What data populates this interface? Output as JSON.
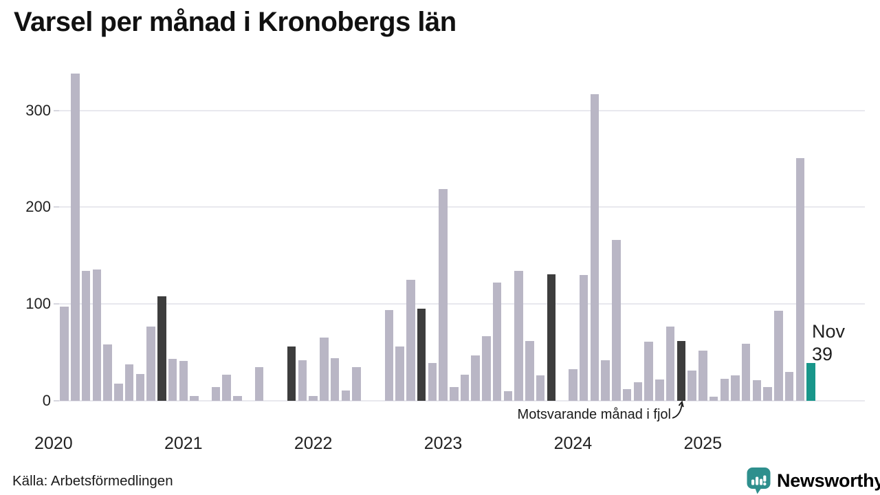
{
  "title": "Varsel per månad i Kronobergs län",
  "source": "Källa: Arbetsförmedlingen",
  "branding": {
    "name": "Newsworthy",
    "color": "#2e8f8d"
  },
  "annotation": {
    "text": "Motsvarande månad i fjol",
    "points_to_month": "2024-11"
  },
  "last_point_label": {
    "month": "Nov",
    "value": "39"
  },
  "colors": {
    "bar_normal": "#b9b6c5",
    "bar_dark": "#3d3d3d",
    "bar_highlight": "#18968a",
    "grid": "#e8e8ee",
    "axis_text": "#222222",
    "annotation_ink": "#1a1a1a"
  },
  "chart_data": {
    "type": "bar",
    "title": "Varsel per månad i Kronobergs län",
    "xlabel": "",
    "ylabel": "",
    "ylim": [
      0,
      343
    ],
    "yticks": [
      0,
      100,
      200,
      300
    ],
    "grid": true,
    "legend_position": "none",
    "months": [
      "2020-01",
      "2020-02",
      "2020-03",
      "2020-04",
      "2020-05",
      "2020-06",
      "2020-07",
      "2020-08",
      "2020-09",
      "2020-10",
      "2020-11",
      "2020-12",
      "2021-01",
      "2021-02",
      "2021-03",
      "2021-04",
      "2021-05",
      "2021-06",
      "2021-07",
      "2021-08",
      "2021-09",
      "2021-10",
      "2021-11",
      "2021-12",
      "2022-01",
      "2022-02",
      "2022-03",
      "2022-04",
      "2022-05",
      "2022-06",
      "2022-07",
      "2022-08",
      "2022-09",
      "2022-10",
      "2022-11",
      "2022-12",
      "2023-01",
      "2023-02",
      "2023-03",
      "2023-04",
      "2023-05",
      "2023-06",
      "2023-07",
      "2023-08",
      "2023-09",
      "2023-10",
      "2023-11",
      "2023-12",
      "2024-01",
      "2024-02",
      "2024-03",
      "2024-04",
      "2024-05",
      "2024-06",
      "2024-07",
      "2024-08",
      "2024-09",
      "2024-10",
      "2024-11",
      "2024-12",
      "2025-01",
      "2025-02",
      "2025-03",
      "2025-04",
      "2025-05",
      "2025-06",
      "2025-07",
      "2025-08",
      "2025-09",
      "2025-10",
      "2025-11"
    ],
    "values": [
      0,
      97,
      338,
      134,
      136,
      58,
      18,
      38,
      28,
      77,
      108,
      43,
      41,
      5,
      0,
      14,
      27,
      5,
      0,
      35,
      0,
      0,
      56,
      42,
      5,
      65,
      44,
      11,
      35,
      0,
      0,
      94,
      56,
      125,
      95,
      39,
      219,
      14,
      27,
      47,
      67,
      122,
      10,
      134,
      62,
      26,
      131,
      0,
      33,
      130,
      317,
      42,
      166,
      12,
      19,
      61,
      22,
      77,
      62,
      31,
      52,
      4,
      23,
      26,
      59,
      21,
      14,
      93,
      30,
      251,
      39
    ],
    "styles": [
      "normal",
      "normal",
      "normal",
      "normal",
      "normal",
      "normal",
      "normal",
      "normal",
      "normal",
      "normal",
      "dark",
      "normal",
      "normal",
      "normal",
      "normal",
      "normal",
      "normal",
      "normal",
      "normal",
      "normal",
      "normal",
      "normal",
      "dark",
      "normal",
      "normal",
      "normal",
      "normal",
      "normal",
      "normal",
      "normal",
      "normal",
      "normal",
      "normal",
      "normal",
      "dark",
      "normal",
      "normal",
      "normal",
      "normal",
      "normal",
      "normal",
      "normal",
      "normal",
      "normal",
      "normal",
      "normal",
      "dark",
      "normal",
      "normal",
      "normal",
      "normal",
      "normal",
      "normal",
      "normal",
      "normal",
      "normal",
      "normal",
      "normal",
      "dark",
      "normal",
      "normal",
      "normal",
      "normal",
      "normal",
      "normal",
      "normal",
      "normal",
      "normal",
      "normal",
      "normal",
      "teal"
    ],
    "year_ticks": [
      {
        "label": "2020",
        "index": 0
      },
      {
        "label": "2021",
        "index": 12
      },
      {
        "label": "2022",
        "index": 24
      },
      {
        "label": "2023",
        "index": 36
      },
      {
        "label": "2024",
        "index": 48
      },
      {
        "label": "2025",
        "index": 60
      }
    ]
  }
}
